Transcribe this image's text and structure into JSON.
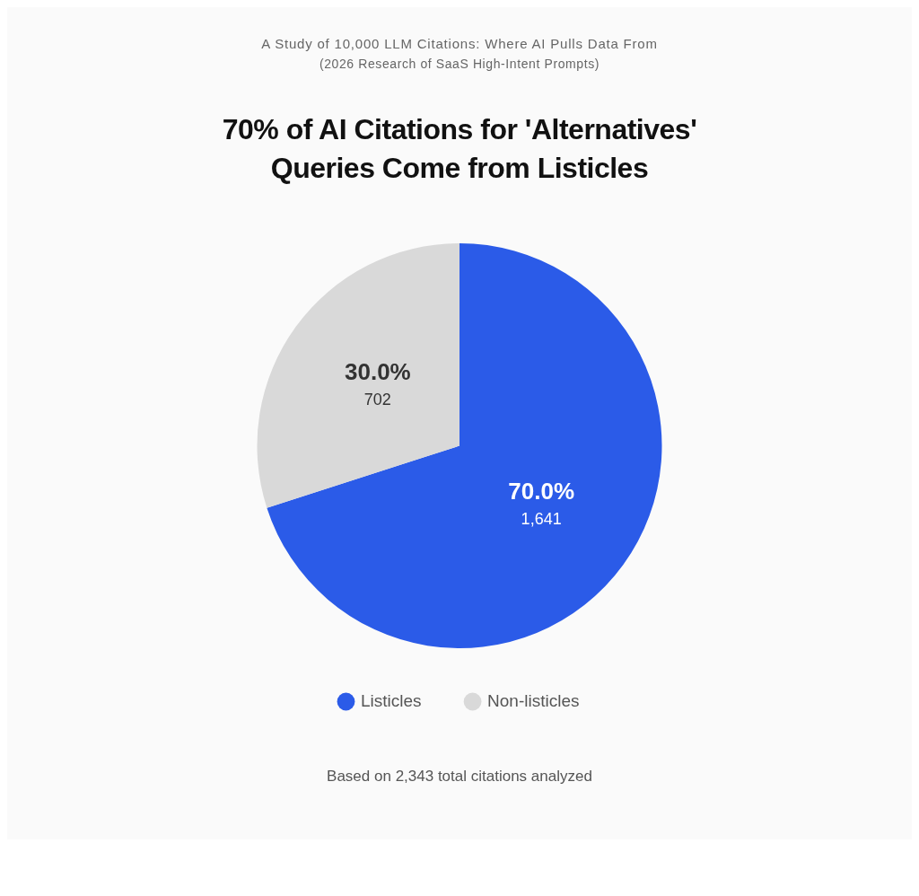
{
  "chart_data": {
    "type": "pie",
    "title": "70% of AI Citations for 'Alternatives' Queries Come from Listicles",
    "subtitle": "A Study of 10,000 LLM Citations: Where AI Pulls Data From",
    "categories": [
      "Listicles",
      "Non-listicles"
    ],
    "values": [
      1641,
      702
    ],
    "colors": [
      "#2b5be8",
      "#d9d9d9"
    ],
    "value_labels": [
      "70.0%\n1,641",
      "30.0%\n702"
    ],
    "legend": "bottom",
    "annotations": [
      "(2026 Research of SaaS High-Intent Prompts)",
      "Based on 2,343 total citations analyzed"
    ]
  }
}
